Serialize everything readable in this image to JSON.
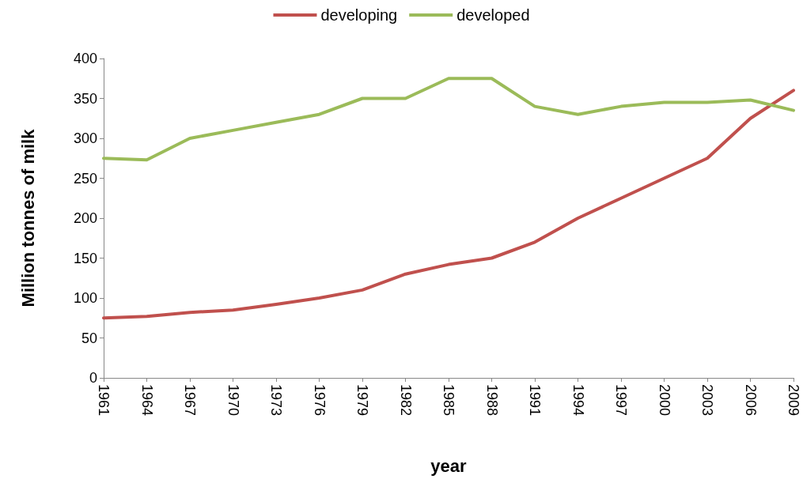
{
  "chart_data": {
    "type": "line",
    "xlabel": "year",
    "ylabel": "Million tonnes of milk",
    "categories": [
      "1961",
      "1964",
      "1967",
      "1970",
      "1973",
      "1976",
      "1979",
      "1982",
      "1985",
      "1988",
      "1991",
      "1994",
      "1997",
      "2000",
      "2003",
      "2006",
      "2009"
    ],
    "series": [
      {
        "name": "developing",
        "color": "#c0504d",
        "values": [
          75,
          77,
          82,
          85,
          92,
          100,
          110,
          130,
          142,
          150,
          170,
          200,
          225,
          250,
          275,
          325,
          360
        ]
      },
      {
        "name": "developed",
        "color": "#9bbb59",
        "values": [
          275,
          273,
          300,
          310,
          320,
          330,
          350,
          350,
          375,
          375,
          340,
          330,
          340,
          345,
          345,
          348,
          335
        ]
      }
    ],
    "ylim": [
      0,
      400
    ],
    "yticks": [
      0,
      50,
      100,
      150,
      200,
      250,
      300,
      350,
      400
    ],
    "grid": false,
    "legend": "top",
    "marker": "none",
    "line_style": "solid"
  }
}
